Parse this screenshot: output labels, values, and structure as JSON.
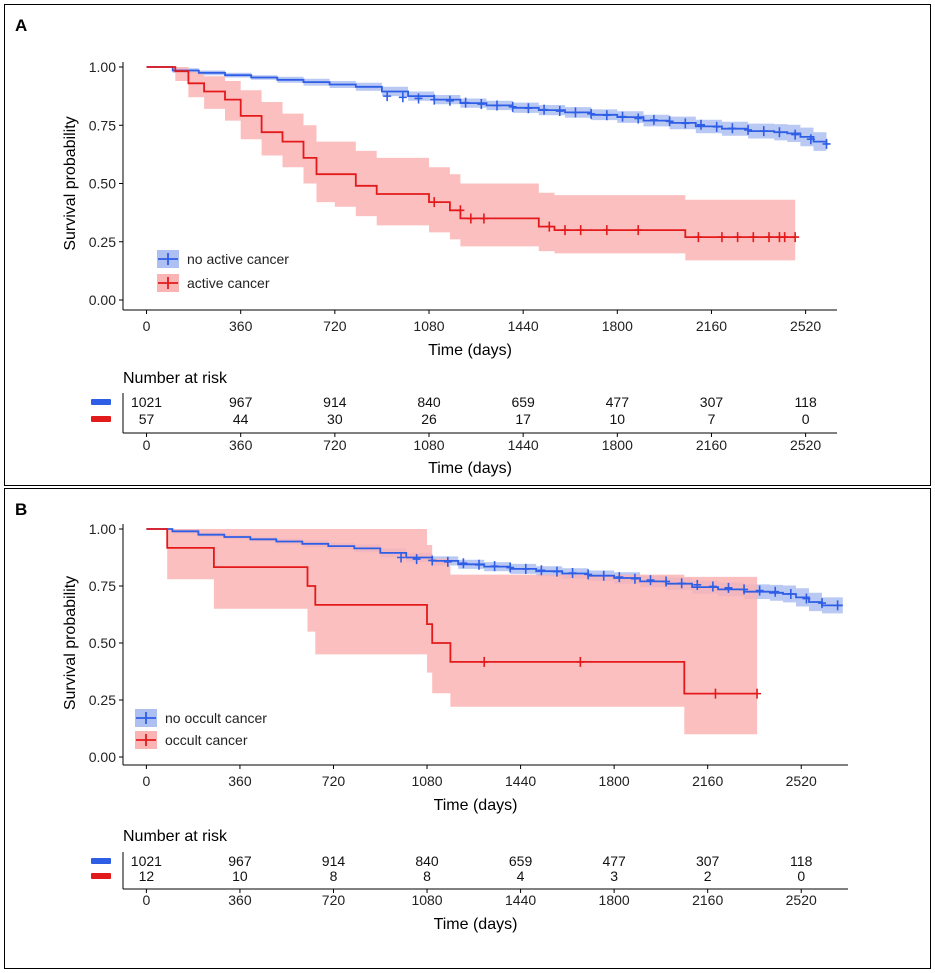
{
  "chart_data": [
    {
      "type": "line",
      "panel_label": "A",
      "xlabel": "Time (days)",
      "ylabel": "Survival probability",
      "xlim": [
        -90,
        2640
      ],
      "ylim": [
        0,
        1
      ],
      "x_ticks": [
        0,
        360,
        720,
        1080,
        1440,
        1800,
        2160,
        2520
      ],
      "x_tick_labels": [
        "0",
        "360",
        "720",
        "1080",
        "1440",
        "1800",
        "2160",
        "2520"
      ],
      "y_ticks": [
        0,
        0.25,
        0.5,
        0.75,
        1.0
      ],
      "y_tick_labels": [
        "0.00",
        "0.25",
        "0.50",
        "0.75",
        "1.00"
      ],
      "legend_position": "bottom-left",
      "series": [
        {
          "name": "no active cancer",
          "color": "#2e5ee6",
          "band_color": "#aebff2",
          "x": [
            0,
            100,
            200,
            300,
            400,
            500,
            600,
            700,
            800,
            900,
            1000,
            1100,
            1200,
            1300,
            1400,
            1500,
            1600,
            1700,
            1800,
            1900,
            2000,
            2100,
            2200,
            2300,
            2400,
            2450,
            2500,
            2550,
            2600
          ],
          "y": [
            1.0,
            0.985,
            0.975,
            0.965,
            0.955,
            0.945,
            0.935,
            0.925,
            0.915,
            0.895,
            0.875,
            0.86,
            0.845,
            0.835,
            0.825,
            0.815,
            0.805,
            0.795,
            0.785,
            0.77,
            0.76,
            0.745,
            0.735,
            0.725,
            0.72,
            0.715,
            0.7,
            0.68,
            0.665
          ],
          "lower": [
            1.0,
            0.975,
            0.965,
            0.955,
            0.945,
            0.932,
            0.92,
            0.91,
            0.898,
            0.875,
            0.855,
            0.84,
            0.825,
            0.815,
            0.803,
            0.793,
            0.782,
            0.772,
            0.76,
            0.745,
            0.733,
            0.716,
            0.705,
            0.693,
            0.685,
            0.678,
            0.66,
            0.64,
            0.63
          ],
          "upper": [
            1.0,
            0.995,
            0.985,
            0.975,
            0.965,
            0.958,
            0.95,
            0.94,
            0.932,
            0.915,
            0.895,
            0.88,
            0.865,
            0.855,
            0.847,
            0.837,
            0.828,
            0.818,
            0.81,
            0.795,
            0.787,
            0.774,
            0.765,
            0.757,
            0.755,
            0.752,
            0.74,
            0.72,
            0.7
          ],
          "censor_x": [
            920,
            980,
            1040,
            1100,
            1160,
            1220,
            1280,
            1340,
            1400,
            1460,
            1520,
            1580,
            1640,
            1700,
            1760,
            1820,
            1880,
            1940,
            2000,
            2060,
            2120,
            2180,
            2240,
            2300,
            2360,
            2420,
            2480,
            2540,
            2600
          ],
          "censor_y": [
            0.875,
            0.87,
            0.865,
            0.86,
            0.855,
            0.847,
            0.841,
            0.835,
            0.829,
            0.823,
            0.817,
            0.811,
            0.805,
            0.799,
            0.793,
            0.787,
            0.779,
            0.773,
            0.767,
            0.758,
            0.752,
            0.743,
            0.737,
            0.73,
            0.725,
            0.72,
            0.71,
            0.69,
            0.67
          ]
        },
        {
          "name": "active cancer",
          "color": "#e31a1c",
          "band_color": "#fbb4b4",
          "x": [
            0,
            110,
            160,
            220,
            300,
            360,
            440,
            520,
            600,
            650,
            720,
            800,
            880,
            1000,
            1080,
            1160,
            1200,
            1280,
            1440,
            1500,
            1560,
            1580,
            1800,
            2060,
            2480
          ],
          "y": [
            1.0,
            0.982,
            0.93,
            0.895,
            0.86,
            0.79,
            0.72,
            0.68,
            0.61,
            0.54,
            0.54,
            0.49,
            0.455,
            0.455,
            0.42,
            0.385,
            0.35,
            0.35,
            0.35,
            0.315,
            0.3,
            0.3,
            0.3,
            0.27,
            0.27
          ],
          "lower": [
            1.0,
            0.94,
            0.87,
            0.82,
            0.77,
            0.69,
            0.62,
            0.57,
            0.5,
            0.42,
            0.4,
            0.36,
            0.32,
            0.32,
            0.29,
            0.26,
            0.23,
            0.23,
            0.23,
            0.21,
            0.2,
            0.2,
            0.2,
            0.17,
            0.17
          ],
          "upper": [
            1.0,
            1.0,
            0.98,
            0.96,
            0.94,
            0.9,
            0.85,
            0.8,
            0.75,
            0.68,
            0.68,
            0.64,
            0.61,
            0.61,
            0.57,
            0.54,
            0.5,
            0.5,
            0.5,
            0.46,
            0.45,
            0.45,
            0.45,
            0.43,
            0.43
          ],
          "censor_x": [
            1100,
            1200,
            1240,
            1290,
            1540,
            1600,
            1660,
            1760,
            1880,
            2110,
            2200,
            2260,
            2320,
            2380,
            2420,
            2440,
            2480
          ],
          "censor_y": [
            0.42,
            0.385,
            0.35,
            0.35,
            0.315,
            0.3,
            0.3,
            0.3,
            0.3,
            0.27,
            0.27,
            0.27,
            0.27,
            0.27,
            0.27,
            0.27,
            0.27
          ]
        }
      ],
      "risk_table": {
        "title": "Number at risk",
        "xlabel": "Time (days)",
        "rows": [
          {
            "color": "#2e5ee6",
            "values": [
              "1021",
              "967",
              "914",
              "840",
              "659",
              "477",
              "307",
              "118"
            ]
          },
          {
            "color": "#e31a1c",
            "values": [
              "57",
              "44",
              "30",
              "26",
              "17",
              "10",
              "7",
              "0"
            ]
          }
        ]
      }
    },
    {
      "type": "line",
      "panel_label": "B",
      "xlabel": "Time (days)",
      "ylabel": "Survival probability",
      "xlim": [
        -90,
        2700
      ],
      "ylim": [
        0,
        1
      ],
      "x_ticks": [
        0,
        360,
        720,
        1080,
        1440,
        1800,
        2160,
        2520
      ],
      "x_tick_labels": [
        "0",
        "360",
        "720",
        "1080",
        "1440",
        "1800",
        "2160",
        "2520"
      ],
      "y_ticks": [
        0,
        0.25,
        0.5,
        0.75,
        1.0
      ],
      "y_tick_labels": [
        "0.00",
        "0.25",
        "0.50",
        "0.75",
        "1.00"
      ],
      "legend_position": "bottom-left",
      "series": [
        {
          "name": "no occult cancer",
          "color": "#2e5ee6",
          "band_color": "#aebff2",
          "x": [
            0,
            100,
            200,
            300,
            400,
            500,
            600,
            700,
            800,
            900,
            1000,
            1100,
            1200,
            1300,
            1400,
            1500,
            1600,
            1700,
            1800,
            1900,
            2000,
            2100,
            2200,
            2300,
            2400,
            2450,
            2500,
            2550,
            2600,
            2680
          ],
          "y": [
            1.0,
            0.99,
            0.975,
            0.965,
            0.955,
            0.945,
            0.935,
            0.925,
            0.915,
            0.895,
            0.875,
            0.86,
            0.845,
            0.835,
            0.825,
            0.815,
            0.805,
            0.795,
            0.785,
            0.77,
            0.76,
            0.745,
            0.735,
            0.725,
            0.72,
            0.715,
            0.7,
            0.68,
            0.665,
            0.665
          ],
          "lower": [
            1.0,
            0.98,
            0.965,
            0.955,
            0.945,
            0.932,
            0.92,
            0.91,
            0.898,
            0.875,
            0.855,
            0.84,
            0.825,
            0.815,
            0.803,
            0.793,
            0.782,
            0.772,
            0.76,
            0.745,
            0.733,
            0.716,
            0.705,
            0.693,
            0.685,
            0.678,
            0.66,
            0.64,
            0.63,
            0.63
          ],
          "upper": [
            1.0,
            1.0,
            0.985,
            0.975,
            0.965,
            0.958,
            0.95,
            0.94,
            0.932,
            0.915,
            0.895,
            0.88,
            0.865,
            0.855,
            0.847,
            0.837,
            0.828,
            0.818,
            0.81,
            0.795,
            0.787,
            0.774,
            0.765,
            0.757,
            0.755,
            0.752,
            0.74,
            0.72,
            0.7,
            0.7
          ],
          "censor_x": [
            980,
            1040,
            1100,
            1160,
            1220,
            1280,
            1340,
            1400,
            1460,
            1520,
            1580,
            1640,
            1700,
            1760,
            1820,
            1880,
            1940,
            2000,
            2060,
            2120,
            2180,
            2240,
            2300,
            2360,
            2420,
            2480,
            2540,
            2600,
            2660
          ],
          "censor_y": [
            0.875,
            0.868,
            0.862,
            0.856,
            0.85,
            0.843,
            0.837,
            0.831,
            0.825,
            0.819,
            0.813,
            0.807,
            0.801,
            0.795,
            0.789,
            0.782,
            0.776,
            0.77,
            0.762,
            0.755,
            0.748,
            0.742,
            0.735,
            0.73,
            0.725,
            0.715,
            0.695,
            0.675,
            0.665
          ]
        },
        {
          "name": "occult cancer",
          "color": "#e31a1c",
          "band_color": "#fbb4b4",
          "x": [
            0,
            80,
            260,
            620,
            650,
            1080,
            1100,
            1170,
            2070,
            2350
          ],
          "y": [
            1.0,
            0.917,
            0.833,
            0.75,
            0.667,
            0.583,
            0.5,
            0.417,
            0.278,
            0.278
          ],
          "lower": [
            1.0,
            0.78,
            0.65,
            0.55,
            0.45,
            0.37,
            0.28,
            0.22,
            0.1,
            0.1
          ],
          "upper": [
            1.0,
            1.0,
            1.0,
            1.0,
            1.0,
            0.93,
            0.87,
            0.8,
            0.79,
            0.79
          ],
          "censor_x": [
            1300,
            1670,
            2190,
            2350
          ],
          "censor_y": [
            0.417,
            0.417,
            0.278,
            0.278
          ]
        }
      ],
      "risk_table": {
        "title": "Number at risk",
        "xlabel": "Time (days)",
        "rows": [
          {
            "color": "#2e5ee6",
            "values": [
              "1021",
              "967",
              "914",
              "840",
              "659",
              "477",
              "307",
              "118"
            ]
          },
          {
            "color": "#e31a1c",
            "values": [
              "12",
              "10",
              "8",
              "8",
              "4",
              "3",
              "2",
              "0"
            ]
          }
        ]
      }
    }
  ]
}
